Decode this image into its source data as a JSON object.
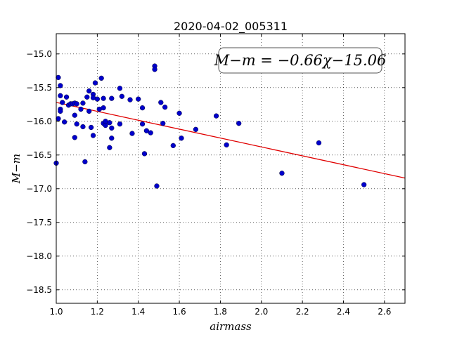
{
  "chart_data": {
    "type": "scatter",
    "title": "2020-04-02_005311",
    "xlabel": "airmass",
    "ylabel": "M−m",
    "xlim": [
      1.0,
      2.7
    ],
    "ylim": [
      -18.7,
      -14.7
    ],
    "xticks": [
      1.0,
      1.2,
      1.4,
      1.6,
      1.8,
      2.0,
      2.2,
      2.4,
      2.6
    ],
    "xtick_labels": [
      "1.0",
      "1.2",
      "1.4",
      "1.6",
      "1.8",
      "2.0",
      "2.2",
      "2.4",
      "2.6"
    ],
    "yticks": [
      -15.0,
      -15.5,
      -16.0,
      -16.5,
      -17.0,
      -17.5,
      -18.0,
      -18.5
    ],
    "ytick_labels": [
      "−15.0",
      "−15.5",
      "−16.0",
      "−16.5",
      "−17.0",
      "−17.5",
      "−18.0",
      "−18.5"
    ],
    "grid": true,
    "annotation": "M−m = −0.66χ−15.06",
    "fit": {
      "slope": -0.66,
      "intercept": -15.06,
      "color": "#e00000"
    },
    "marker_color": "#0000cc",
    "points": [
      [
        1.0,
        -16.62
      ],
      [
        1.01,
        -15.96
      ],
      [
        1.01,
        -15.35
      ],
      [
        1.02,
        -15.47
      ],
      [
        1.02,
        -15.62
      ],
      [
        1.02,
        -15.82
      ],
      [
        1.02,
        -15.85
      ],
      [
        1.03,
        -15.72
      ],
      [
        1.04,
        -16.01
      ],
      [
        1.05,
        -15.64
      ],
      [
        1.06,
        -15.76
      ],
      [
        1.07,
        -15.74
      ],
      [
        1.08,
        -15.74
      ],
      [
        1.09,
        -15.91
      ],
      [
        1.09,
        -15.73
      ],
      [
        1.09,
        -16.24
      ],
      [
        1.1,
        -16.04
      ],
      [
        1.1,
        -15.74
      ],
      [
        1.12,
        -15.82
      ],
      [
        1.13,
        -16.08
      ],
      [
        1.13,
        -15.73
      ],
      [
        1.14,
        -16.6
      ],
      [
        1.15,
        -15.64
      ],
      [
        1.16,
        -15.55
      ],
      [
        1.16,
        -15.85
      ],
      [
        1.17,
        -16.09
      ],
      [
        1.18,
        -16.21
      ],
      [
        1.18,
        -15.6
      ],
      [
        1.18,
        -15.65
      ],
      [
        1.19,
        -15.43
      ],
      [
        1.2,
        -15.67
      ],
      [
        1.21,
        -15.82
      ],
      [
        1.22,
        -15.36
      ],
      [
        1.23,
        -15.8
      ],
      [
        1.23,
        -16.03
      ],
      [
        1.23,
        -15.66
      ],
      [
        1.24,
        -16.06
      ],
      [
        1.24,
        -16.0
      ],
      [
        1.26,
        -16.02
      ],
      [
        1.26,
        -16.39
      ],
      [
        1.27,
        -16.1
      ],
      [
        1.27,
        -15.66
      ],
      [
        1.27,
        -16.25
      ],
      [
        1.31,
        -16.04
      ],
      [
        1.31,
        -15.51
      ],
      [
        1.32,
        -15.63
      ],
      [
        1.36,
        -15.68
      ],
      [
        1.37,
        -16.18
      ],
      [
        1.4,
        -15.67
      ],
      [
        1.42,
        -16.04
      ],
      [
        1.42,
        -15.8
      ],
      [
        1.43,
        -16.48
      ],
      [
        1.44,
        -16.14
      ],
      [
        1.46,
        -16.17
      ],
      [
        1.48,
        -15.18
      ],
      [
        1.48,
        -15.23
      ],
      [
        1.49,
        -16.96
      ],
      [
        1.51,
        -15.72
      ],
      [
        1.52,
        -16.03
      ],
      [
        1.53,
        -15.79
      ],
      [
        1.57,
        -16.36
      ],
      [
        1.6,
        -15.88
      ],
      [
        1.61,
        -16.25
      ],
      [
        1.68,
        -16.12
      ],
      [
        1.78,
        -15.92
      ],
      [
        1.83,
        -16.35
      ],
      [
        1.89,
        -16.03
      ],
      [
        2.1,
        -16.77
      ],
      [
        2.28,
        -16.32
      ],
      [
        2.5,
        -16.94
      ]
    ]
  }
}
